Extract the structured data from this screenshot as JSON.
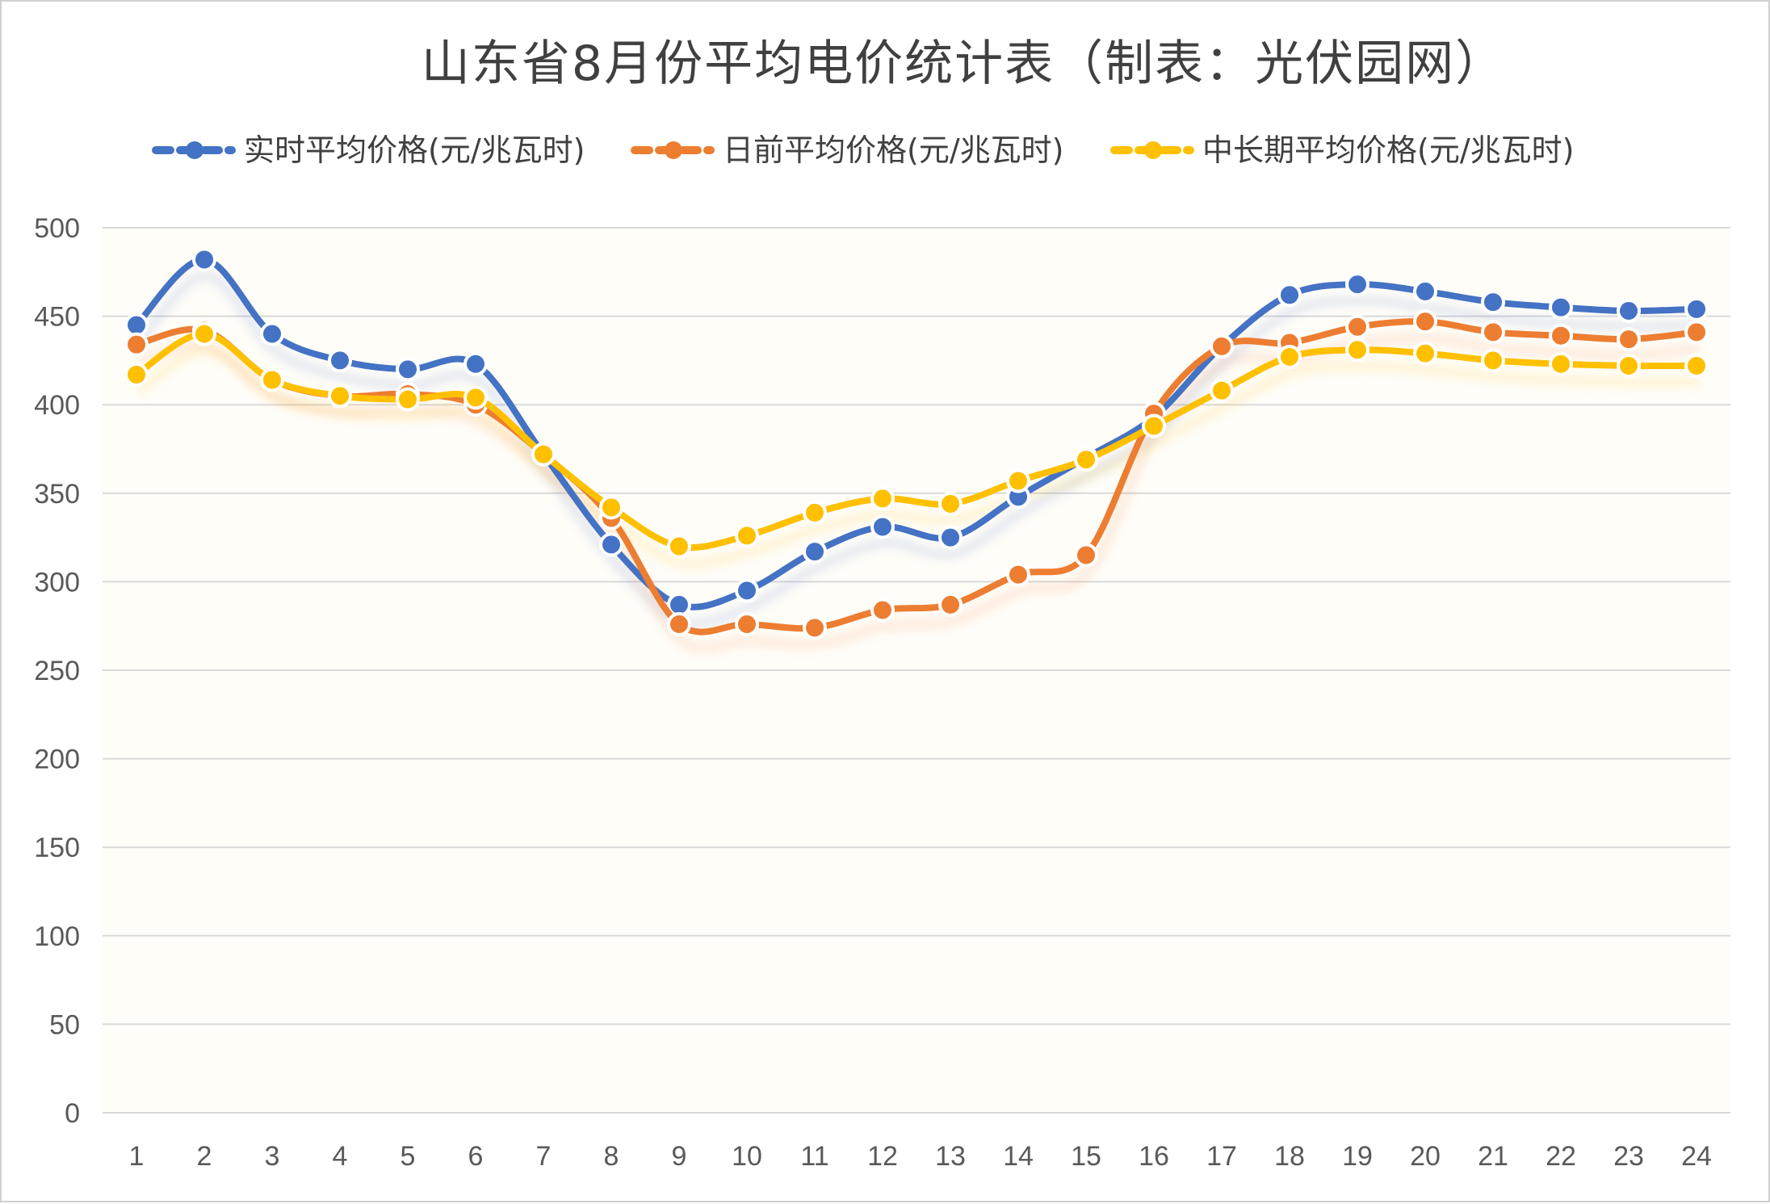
{
  "chart_data": {
    "type": "line",
    "title": "山东省8月份平均电价统计表（制表：光伏园网）",
    "xlabel": "",
    "ylabel": "",
    "categories": [
      "1",
      "2",
      "3",
      "4",
      "5",
      "6",
      "7",
      "8",
      "9",
      "10",
      "11",
      "12",
      "13",
      "14",
      "15",
      "16",
      "17",
      "18",
      "19",
      "20",
      "21",
      "22",
      "23",
      "24"
    ],
    "ylim": [
      0,
      500
    ],
    "yticks": [
      0,
      50,
      100,
      150,
      200,
      250,
      300,
      350,
      400,
      450,
      500
    ],
    "grid": true,
    "legend_position": "top",
    "series": [
      {
        "name": "实时平均价格(元/兆瓦时)",
        "color": "#4472c4",
        "values": [
          445,
          482,
          440,
          425,
          420,
          423,
          372,
          321,
          287,
          295,
          317,
          331,
          325,
          348,
          370,
          393,
          433,
          462,
          468,
          464,
          458,
          455,
          453,
          454
        ]
      },
      {
        "name": "日前平均价格(元/兆瓦时)",
        "color": "#ed7d31",
        "values": [
          434,
          442,
          414,
          405,
          406,
          400,
          372,
          336,
          276,
          276,
          274,
          284,
          287,
          304,
          315,
          395,
          433,
          435,
          444,
          447,
          441,
          439,
          437,
          441
        ]
      },
      {
        "name": "中长期平均价格(元/兆瓦时)",
        "color": "#ffc000",
        "values": [
          417,
          440,
          414,
          405,
          403,
          404,
          372,
          342,
          320,
          326,
          339,
          347,
          344,
          357,
          369,
          388,
          408,
          427,
          431,
          429,
          425,
          423,
          422,
          422
        ]
      }
    ]
  }
}
